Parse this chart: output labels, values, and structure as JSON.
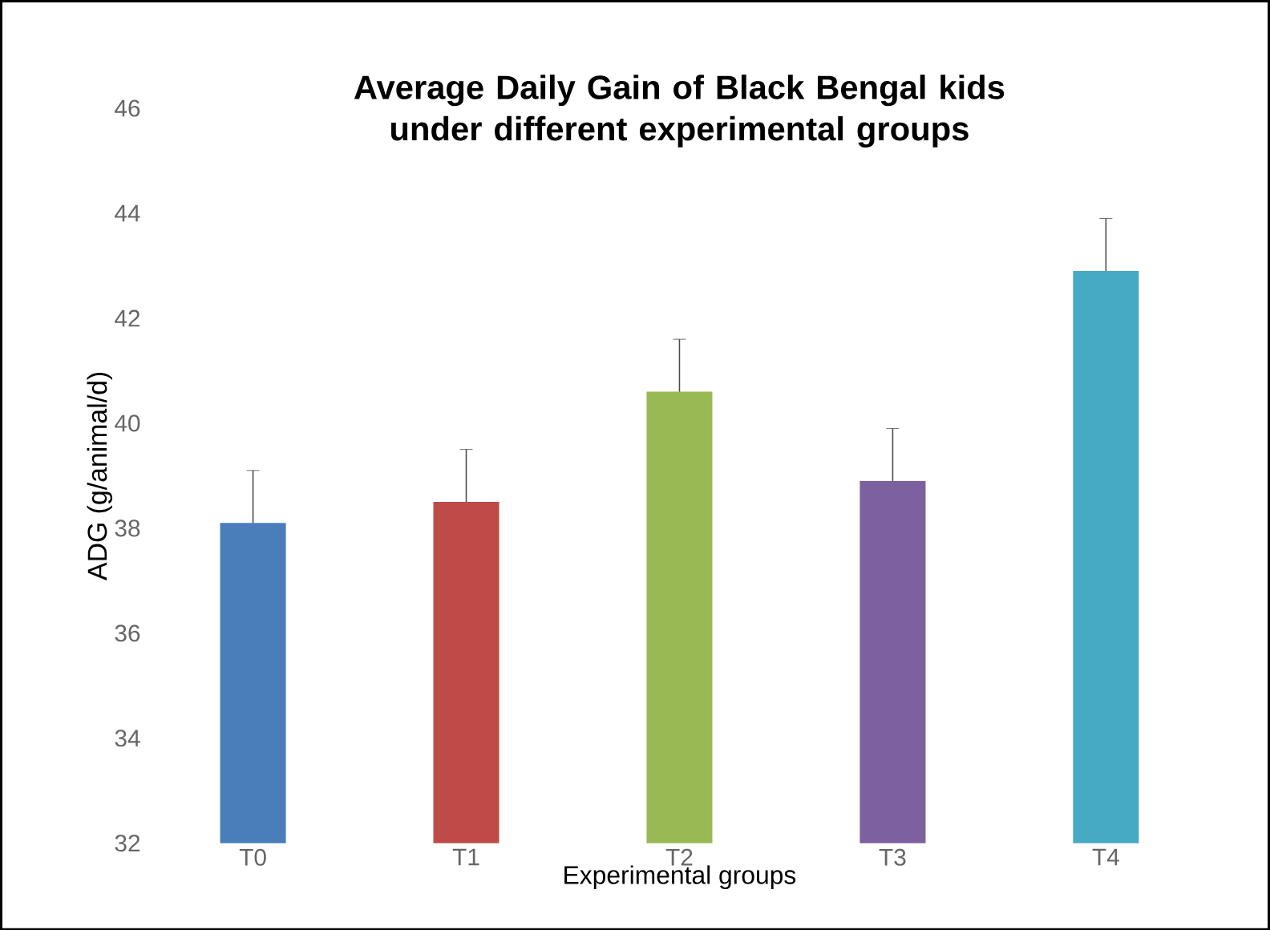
{
  "chart_data": {
    "type": "bar",
    "title": "Average Daily Gain of Black Bengal kids under different experimental groups",
    "xlabel": "Experimental groups",
    "ylabel": "ADG (g/animal/d)",
    "categories": [
      "T0",
      "T1",
      "T2",
      "T3",
      "T4"
    ],
    "values": [
      38.1,
      38.5,
      40.6,
      38.9,
      42.9
    ],
    "colors": [
      "#4a7ebb",
      "#be4b48",
      "#98b954",
      "#7d60a0",
      "#46aac5"
    ],
    "errors": [
      1.0,
      1.0,
      1.0,
      1.0,
      1.0
    ],
    "ylim": [
      32,
      46
    ],
    "yticks": [
      32,
      34,
      36,
      38,
      40,
      42,
      44,
      46
    ],
    "grid": false,
    "legend": false
  }
}
